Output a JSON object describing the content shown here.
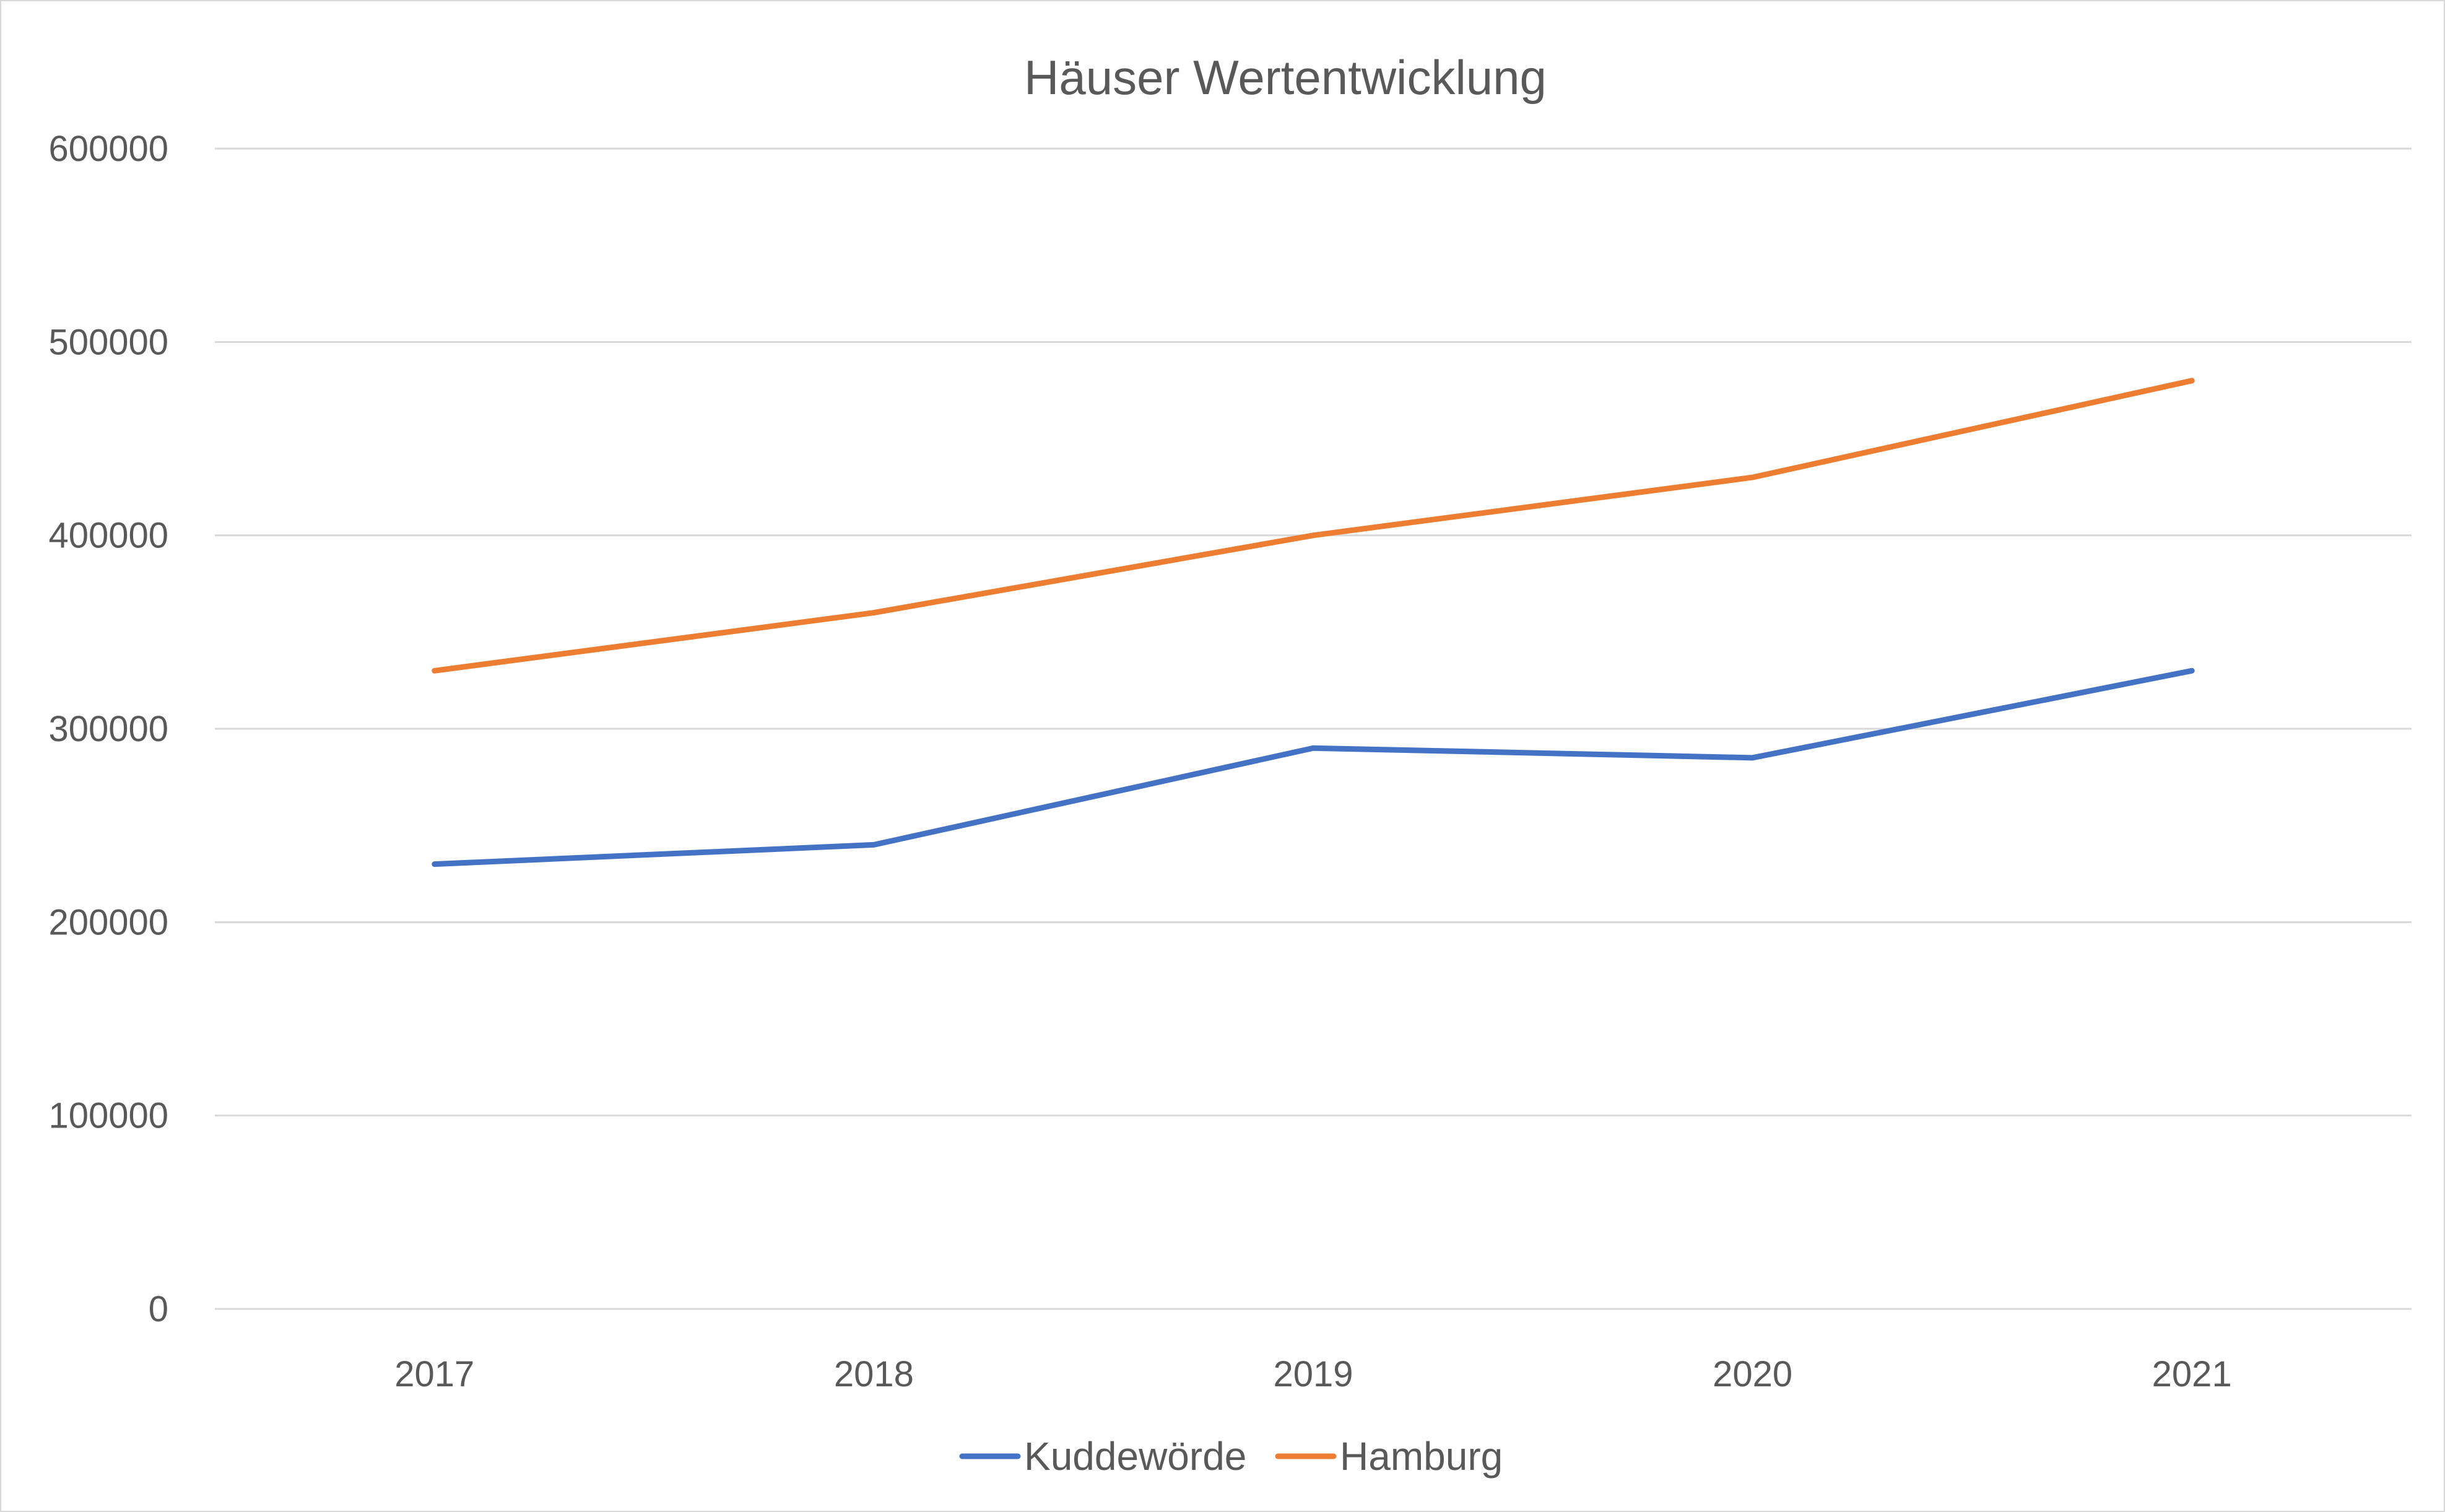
{
  "chart_data": {
    "type": "line",
    "title": "Häuser Wertentwicklung",
    "xlabel": "",
    "ylabel": "",
    "categories": [
      "2017",
      "2018",
      "2019",
      "2020",
      "2021"
    ],
    "ylim": [
      0,
      600000
    ],
    "yticks": [
      "0",
      "100000",
      "200000",
      "300000",
      "400000",
      "500000",
      "600000"
    ],
    "grid": true,
    "legend_position": "bottom",
    "series": [
      {
        "name": "Kuddewörde",
        "color": "#4472c4",
        "values": [
          230000,
          240000,
          290000,
          285000,
          330000
        ]
      },
      {
        "name": "Hamburg",
        "color": "#ed7d31",
        "values": [
          330000,
          360000,
          400000,
          430000,
          480000
        ]
      }
    ]
  }
}
